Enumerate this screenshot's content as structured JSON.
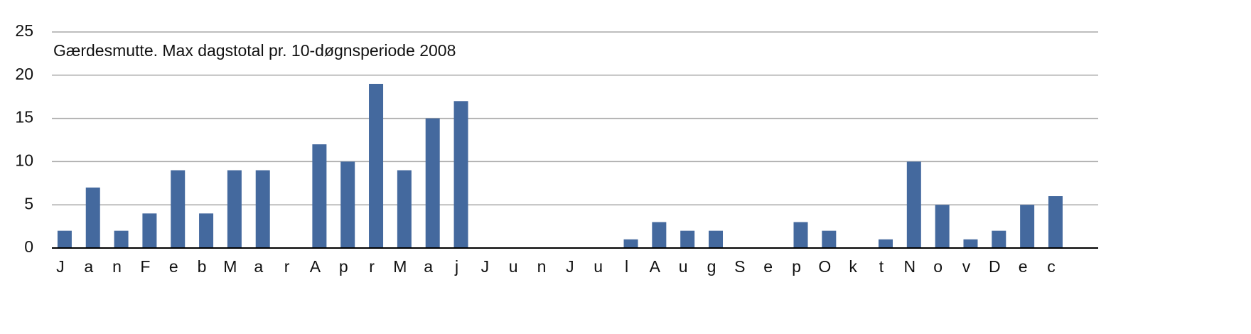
{
  "chart_data": {
    "type": "bar",
    "title": "Gærdesmutte. Max dagstotal pr. 10-døgnsperiode 2008",
    "categories": [
      "J",
      "a",
      "n",
      "F",
      "e",
      "b",
      "M",
      "a",
      "r",
      "A",
      "p",
      "r",
      "M",
      "a",
      "j",
      "J",
      "u",
      "n",
      "J",
      "u",
      "l",
      "A",
      "u",
      "g",
      "S",
      "e",
      "p",
      "O",
      "k",
      "t",
      "N",
      "o",
      "v",
      "D",
      "e",
      "c"
    ],
    "values": [
      2,
      7,
      2,
      4,
      9,
      4,
      9,
      9,
      0,
      12,
      10,
      19,
      9,
      15,
      17,
      0,
      0,
      0,
      0,
      0,
      1,
      3,
      2,
      2,
      0,
      0,
      3,
      2,
      0,
      1,
      10,
      5,
      1,
      2,
      5,
      6
    ],
    "color": "#44699e",
    "ylim": [
      0,
      25
    ],
    "yticks": [
      0,
      5,
      10,
      15,
      20,
      25
    ],
    "grid": true
  }
}
